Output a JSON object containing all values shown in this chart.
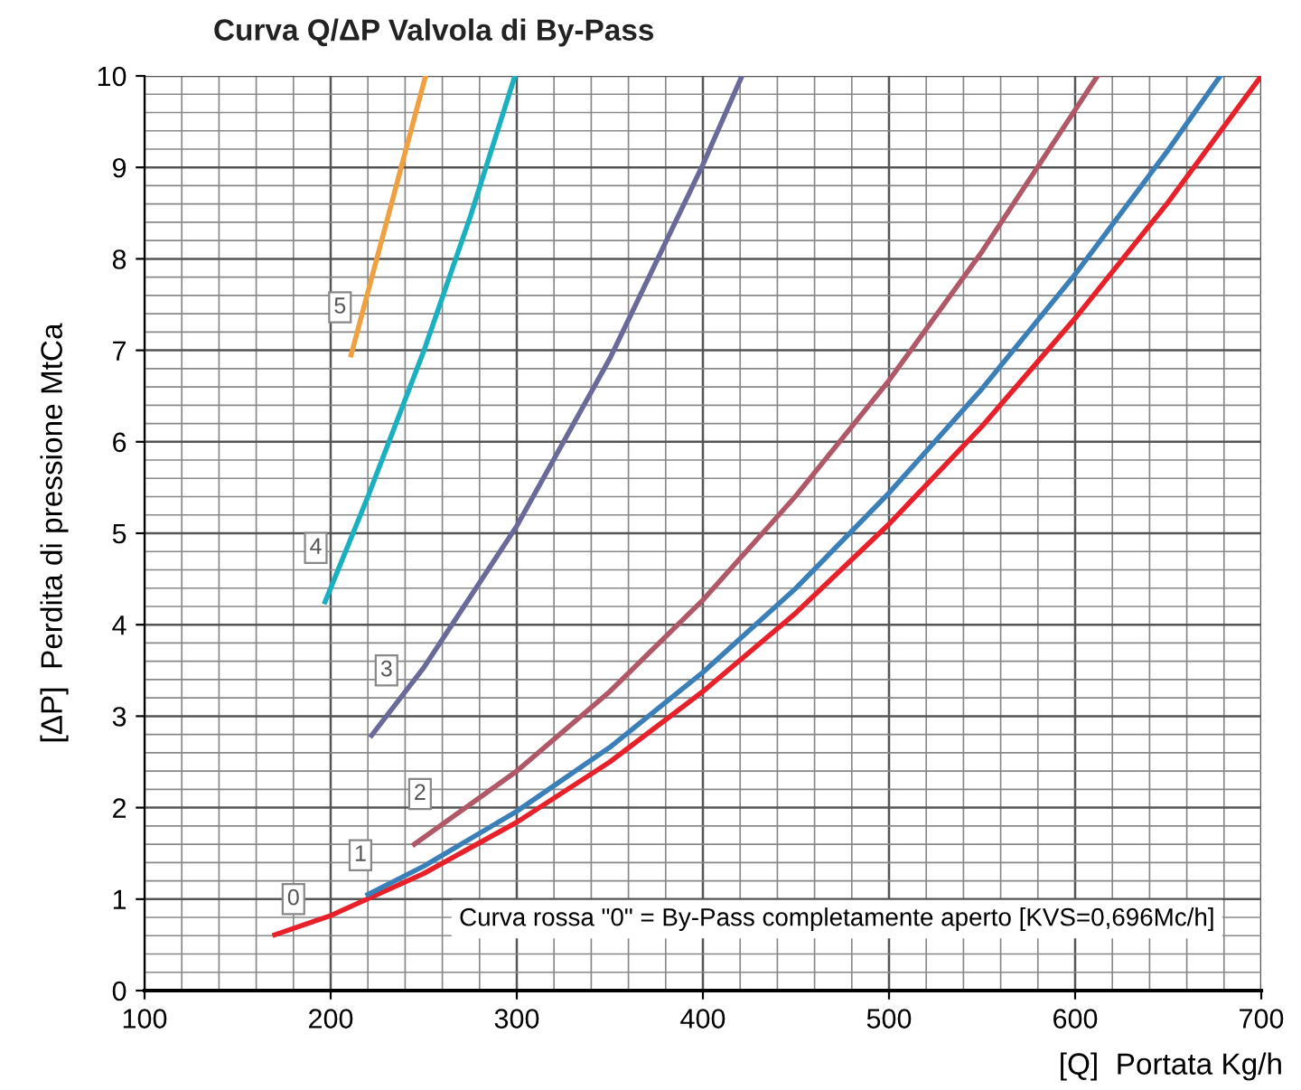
{
  "chart_data": {
    "type": "line",
    "title": "Curva Q/ΔP Valvola di By-Pass",
    "xlabel": "[Q]  Portata Kg/h",
    "ylabel": "[ΔP]  Perdita di pressione MtCa",
    "series": [
      {
        "color": "#e8202a",
        "x": [
          170,
          200,
          250,
          300,
          350,
          400,
          450,
          500,
          550,
          600,
          650,
          700
        ],
        "values": [
          0.61,
          0.82,
          1.28,
          1.84,
          2.5,
          3.27,
          4.13,
          5.1,
          6.17,
          7.35,
          8.62,
          10
        ]
      },
      {
        "color": "#3a7fb8",
        "x": [
          220,
          250,
          300,
          350,
          400,
          450,
          500,
          550,
          600,
          650,
          678
        ],
        "values": [
          1.05,
          1.36,
          1.96,
          2.66,
          3.48,
          4.4,
          5.44,
          6.58,
          7.83,
          9.19,
          10
        ]
      },
      {
        "color": "#b05868",
        "x": [
          245,
          300,
          350,
          400,
          450,
          500,
          550,
          612
        ],
        "values": [
          1.6,
          2.4,
          3.27,
          4.27,
          5.41,
          6.67,
          8.08,
          10
        ]
      },
      {
        "color": "#6a6a9a",
        "x": [
          222,
          250,
          300,
          350,
          400,
          421
        ],
        "values": [
          2.79,
          3.53,
          5.08,
          6.91,
          9.03,
          10
        ]
      },
      {
        "color": "#1ab0c0",
        "x": [
          197,
          220,
          250,
          275,
          299
        ],
        "values": [
          4.25,
          5.4,
          6.99,
          8.46,
          10
        ]
      },
      {
        "color": "#f0a040",
        "x": [
          211,
          230,
          251
        ],
        "values": [
          6.95,
          8.4,
          10
        ]
      }
    ],
    "annotations": [
      {
        "text": "0",
        "x": 180,
        "y": 1.0
      },
      {
        "text": "1",
        "x": 216,
        "y": 1.48
      },
      {
        "text": "2",
        "x": 248,
        "y": 2.15
      },
      {
        "text": "3",
        "x": 230,
        "y": 3.5
      },
      {
        "text": "4",
        "x": 192,
        "y": 4.84
      },
      {
        "text": "5",
        "x": 205,
        "y": 7.47
      },
      "Curva rossa \"0\" = By-Pass completamente aperto [KVS=0,696Mc/h]"
    ],
    "xlim": [
      100,
      700
    ],
    "ylim": [
      0,
      10
    ],
    "xticks": [
      100,
      200,
      300,
      400,
      500,
      600,
      700
    ],
    "yticks": [
      0,
      1,
      2,
      3,
      4,
      5,
      6,
      7,
      8,
      9,
      10
    ],
    "grid": true,
    "legend": false,
    "marker": "none",
    "line_style": "solid"
  }
}
